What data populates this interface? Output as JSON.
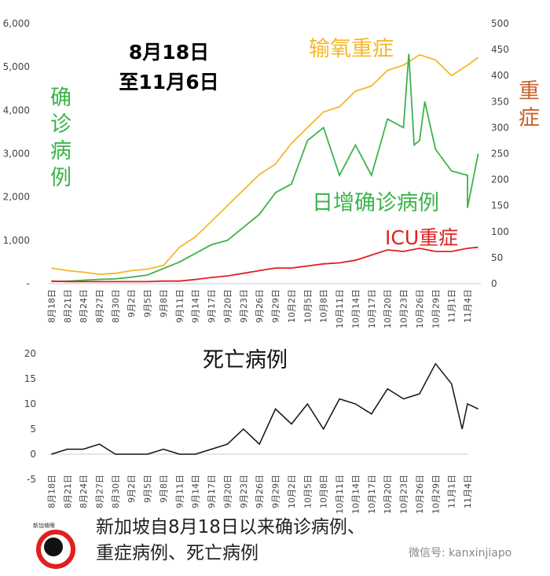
{
  "chart_data": [
    {
      "type": "line",
      "title": "8月18日\n至11月6日",
      "title_lines": [
        "8月18日",
        "至11月6日"
      ],
      "x_tick_labels": [
        "8月18日",
        "8月21日",
        "8月24日",
        "8月27日",
        "8月30日",
        "9月2日",
        "9月5日",
        "9月8日",
        "9月11日",
        "9月14日",
        "9月17日",
        "9月20日",
        "9月23日",
        "9月26日",
        "9月29日",
        "10月2日",
        "10月5日",
        "10月8日",
        "10月11日",
        "10月14日",
        "10月17日",
        "10月20日",
        "10月23日",
        "10月26日",
        "10月29日",
        "11月1日",
        "11月4日"
      ],
      "x_day_offsets": [
        0,
        3,
        6,
        9,
        12,
        15,
        18,
        21,
        24,
        27,
        30,
        33,
        36,
        39,
        42,
        45,
        48,
        51,
        54,
        57,
        60,
        63,
        66,
        69,
        72,
        75,
        78,
        80
      ],
      "left_axis": {
        "label": "确诊病例",
        "ticks": [
          "-",
          "1,000",
          "2,000",
          "3,000",
          "4,000",
          "5,000",
          "6,000"
        ],
        "ylim": [
          0,
          6000
        ]
      },
      "right_axis": {
        "label": "重症",
        "ticks": [
          "0",
          "50",
          "100",
          "150",
          "200",
          "250",
          "300",
          "350",
          "400",
          "450",
          "500"
        ],
        "ylim": [
          0,
          500
        ]
      },
      "series": [
        {
          "name": "日增确诊病例",
          "axis": "left",
          "color": "#3cb44b",
          "values": [
            50,
            60,
            80,
            100,
            110,
            150,
            200,
            350,
            500,
            700,
            900,
            1000,
            1300,
            1600,
            2100,
            2300,
            3300,
            3600,
            2500,
            3200,
            2500,
            3800,
            3600,
            3300,
            3100,
            2600,
            2500,
            3000
          ],
          "extra_points": [
            [
              67,
              5300
            ],
            [
              68,
              3200
            ],
            [
              70,
              4200
            ],
            [
              78,
              1750
            ]
          ]
        },
        {
          "name": "输氧重症",
          "axis": "right",
          "color": "#f5b82e",
          "values": [
            30,
            25,
            22,
            18,
            20,
            25,
            28,
            35,
            70,
            90,
            120,
            150,
            180,
            210,
            230,
            270,
            300,
            330,
            340,
            370,
            380,
            410,
            420,
            440,
            430,
            400,
            420,
            435
          ]
        },
        {
          "name": "ICU重症",
          "axis": "right",
          "color": "#e02020",
          "values": [
            5,
            4,
            4,
            4,
            4,
            4,
            4,
            5,
            5,
            8,
            12,
            15,
            20,
            25,
            30,
            30,
            34,
            38,
            40,
            45,
            55,
            65,
            62,
            68,
            62,
            62,
            68,
            70
          ]
        }
      ]
    },
    {
      "type": "line",
      "title": "死亡病例",
      "x_tick_labels": [
        "8月18日",
        "8月21日",
        "8月24日",
        "8月27日",
        "8月30日",
        "9月2日",
        "9月5日",
        "9月8日",
        "9月11日",
        "9月14日",
        "9月17日",
        "9月20日",
        "9月23日",
        "9月26日",
        "9月29日",
        "10月2日",
        "10月5日",
        "10月8日",
        "10月11日",
        "10月14日",
        "10月17日",
        "10月20日",
        "10月23日",
        "10月26日",
        "10月29日",
        "11月1日",
        "11月4日"
      ],
      "yticks": [
        "20",
        "15",
        "10",
        "5",
        "0",
        "-5"
      ],
      "ylim": [
        -5,
        20
      ],
      "series": [
        {
          "name": "死亡病例",
          "color": "#111111",
          "values": [
            0,
            1,
            1,
            2,
            0,
            0,
            0,
            1,
            0,
            0,
            1,
            2,
            5,
            2,
            9,
            6,
            10,
            5,
            11,
            10,
            8,
            13,
            11,
            12,
            18,
            14,
            10,
            9
          ],
          "extra_points": [
            [
              77,
              5
            ]
          ]
        }
      ]
    }
  ],
  "caption": {
    "line1": "新加坡自8月18日以来确诊病例、",
    "line2": "重症病例、死亡病例"
  },
  "logo_text": "新加坡眼",
  "watermark": "微信号: kanxinjiapo"
}
